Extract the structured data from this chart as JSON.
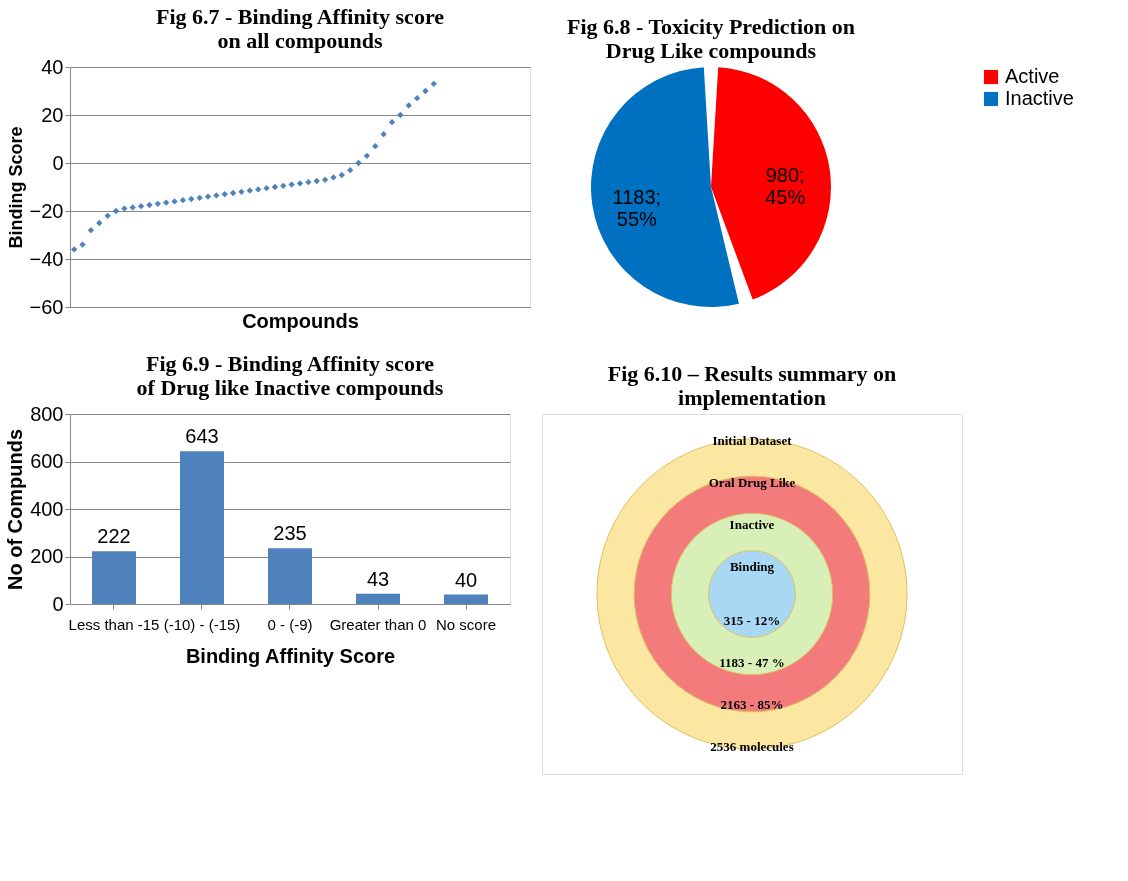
{
  "chart_data": [
    {
      "type": "scatter",
      "title": "Fig 6.7 - Binding Affinity score on all compounds",
      "xlabel": "Compounds",
      "ylabel": "Binding Score",
      "categories": [
        null,
        null,
        null,
        null,
        null,
        null,
        null,
        null,
        null,
        null,
        null,
        null,
        null,
        null,
        null,
        null,
        null,
        null,
        null,
        null,
        null,
        null,
        null,
        null,
        null,
        null,
        null,
        null,
        null,
        null,
        null,
        null,
        null,
        null,
        null,
        null,
        null,
        null,
        null,
        null,
        null,
        null,
        null,
        null,
        null,
        null,
        null,
        null,
        null,
        null,
        null,
        null,
        null,
        null,
        null
      ],
      "series": [
        {
          "color": "#4f81bd",
          "values": [
            -36,
            -34,
            -28,
            -25,
            -22,
            -20,
            -19,
            -18.5,
            -18,
            -17.5,
            -17,
            -16.5,
            -16,
            -15.5,
            -15,
            -14.5,
            -14,
            -13.5,
            -13,
            -12.5,
            -12,
            -11.5,
            -11,
            -10.5,
            -10,
            -9.5,
            -9,
            -8.5,
            -8,
            -7.5,
            -7,
            -6,
            -5,
            -3,
            0,
            3,
            7,
            12,
            17,
            20,
            24,
            27,
            30,
            33,
            null,
            null,
            null,
            null,
            null,
            null,
            null,
            null,
            null,
            null,
            null
          ]
        }
      ],
      "ylim": [
        -60,
        40
      ],
      "yticks": [
        -60,
        -40,
        -20,
        0,
        20,
        40
      ],
      "grid": "y",
      "marker": "diamond",
      "tick_labels": "y"
    },
    {
      "type": "pie",
      "title": "Fig 6.8 - Toxicity Prediction on Drug Like compounds",
      "categories": [
        "Active",
        "Inactive"
      ],
      "values": [
        980,
        1183
      ],
      "colors": [
        "#ff0000",
        "#0070c0"
      ],
      "value_labels": [
        "980;\n45%",
        "1183;\n55%"
      ],
      "legend": "right"
    },
    {
      "type": "bar",
      "title": "Fig 6.9 - Binding Affinity score of Drug like Inactive compounds",
      "xlabel": "Binding Affinity Score",
      "ylabel": "No of Compunds",
      "categories": [
        "Less than -15",
        "(-10) - (-15)",
        "0 - (-9)",
        "Greater than 0",
        "No score"
      ],
      "series": [
        {
          "color": "#4f81bd",
          "values": [
            222,
            643,
            235,
            43,
            40
          ]
        }
      ],
      "ylim": [
        0,
        800
      ],
      "yticks": [
        0,
        200,
        400,
        600,
        800
      ],
      "grid": "y",
      "data_labels": true
    },
    {
      "type": "other",
      "title": "Fig 6.10 – Results summary on implementation",
      "categories": [
        "Initial Dataset",
        "Oral Drug Like",
        "Inactive",
        "Binding"
      ],
      "value_labels": [
        "2536 molecules",
        "2163 - 85%",
        "1183 - 47 %",
        "315 - 12%"
      ],
      "colors": [
        "#fbe7a1",
        "#f47b7b",
        "#d8efb8",
        "#a9d8f5"
      ]
    }
  ]
}
